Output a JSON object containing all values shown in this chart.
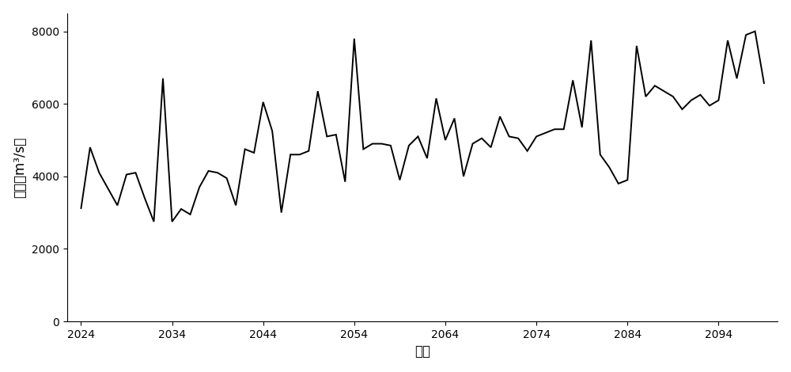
{
  "title": "",
  "xlabel": "时间",
  "ylabel": "流量（m³/s）",
  "xlim": [
    2022.5,
    2100.5
  ],
  "ylim": [
    0,
    8500
  ],
  "yticks": [
    0,
    2000,
    4000,
    6000,
    8000
  ],
  "xticks": [
    2024,
    2034,
    2044,
    2054,
    2064,
    2074,
    2084,
    2094
  ],
  "line_color": "#000000",
  "line_width": 1.4,
  "background_color": "#ffffff",
  "years": [
    2024,
    2025,
    2026,
    2027,
    2028,
    2029,
    2030,
    2031,
    2032,
    2033,
    2034,
    2035,
    2036,
    2037,
    2038,
    2039,
    2040,
    2041,
    2042,
    2043,
    2044,
    2045,
    2046,
    2047,
    2048,
    2049,
    2050,
    2051,
    2052,
    2053,
    2054,
    2055,
    2056,
    2057,
    2058,
    2059,
    2060,
    2061,
    2062,
    2063,
    2064,
    2065,
    2066,
    2067,
    2068,
    2069,
    2070,
    2071,
    2072,
    2073,
    2074,
    2075,
    2076,
    2077,
    2078,
    2079,
    2080,
    2081,
    2082,
    2083,
    2084,
    2085,
    2086,
    2087,
    2088,
    2089,
    2090,
    2091,
    2092,
    2093,
    2094,
    2095,
    2096,
    2097,
    2098,
    2099
  ],
  "values": [
    3100,
    4800,
    4100,
    3650,
    3200,
    4050,
    4100,
    3400,
    2750,
    6700,
    2750,
    3100,
    2950,
    3700,
    4150,
    4100,
    3950,
    3200,
    4750,
    4650,
    6050,
    5250,
    3000,
    4600,
    4600,
    4700,
    6350,
    5100,
    5150,
    3850,
    7800,
    4750,
    4900,
    4900,
    4850,
    3900,
    4850,
    5100,
    4500,
    6150,
    5000,
    5600,
    4000,
    4900,
    5050,
    4800,
    5650,
    5100,
    5050,
    4700,
    5100,
    5200,
    5300,
    5300,
    6650,
    5350,
    7750,
    4600,
    4250,
    3800,
    3900,
    7600,
    6200,
    6500,
    6350,
    6200,
    5850,
    6100,
    6250,
    5950,
    6100,
    7750,
    6700,
    7900,
    8000,
    6550
  ]
}
